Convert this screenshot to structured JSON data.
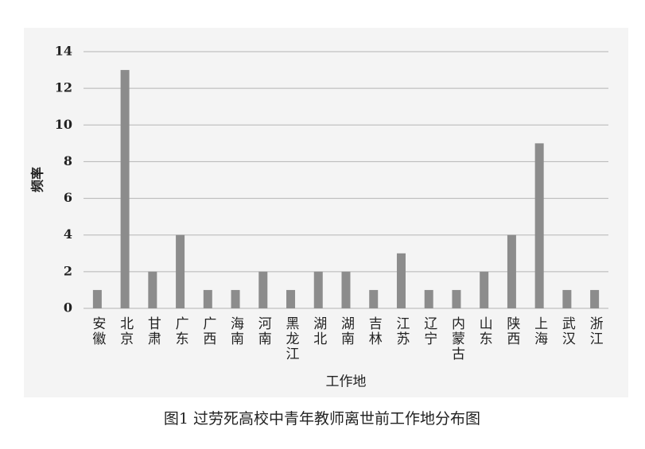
{
  "chart_data": {
    "type": "bar",
    "caption": "图1 过劳死高校中青年教师离世前工作地分布图",
    "xlabel": "工作地",
    "ylabel": "频率",
    "categories": [
      "安徽",
      "北京",
      "甘肃",
      "广东",
      "广西",
      "海南",
      "河南",
      "黑龙江",
      "湖北",
      "湖南",
      "吉林",
      "江苏",
      "辽宁",
      "内蒙古",
      "山东",
      "陕西",
      "上海",
      "武汉",
      "浙江"
    ],
    "values": [
      1,
      13,
      2,
      4,
      1,
      1,
      2,
      1,
      2,
      2,
      1,
      3,
      1,
      1,
      2,
      4,
      9,
      1,
      1
    ],
    "color": "#8c8c8c",
    "ylim": [
      0,
      14
    ],
    "yticks": [
      0,
      2,
      4,
      6,
      8,
      10,
      12,
      14
    ],
    "grid": true
  }
}
